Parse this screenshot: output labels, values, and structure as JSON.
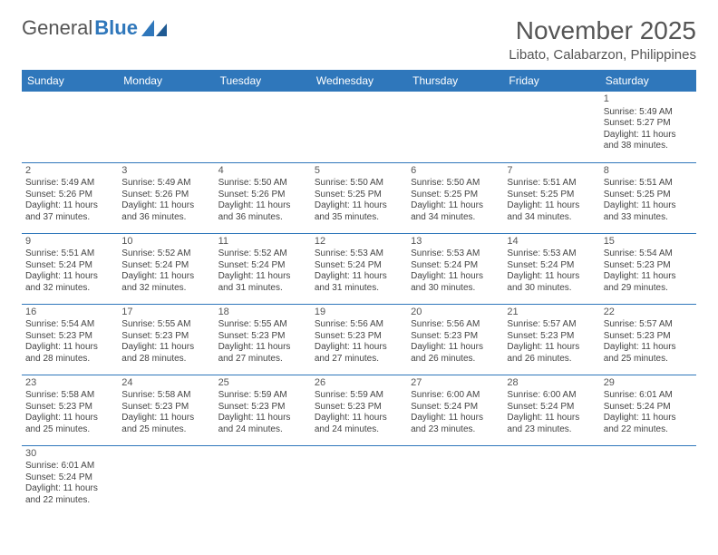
{
  "brand": {
    "part1": "General",
    "part2": "Blue"
  },
  "title": "November 2025",
  "location": "Libato, Calabarzon, Philippines",
  "colors": {
    "header_bg": "#2f77bb",
    "header_text": "#ffffff",
    "border": "#2f77bb",
    "text": "#444444",
    "title_text": "#555555"
  },
  "typography": {
    "title_fontsize": 28,
    "location_fontsize": 15,
    "dayheader_fontsize": 12,
    "cell_fontsize": 10
  },
  "day_headers": [
    "Sunday",
    "Monday",
    "Tuesday",
    "Wednesday",
    "Thursday",
    "Friday",
    "Saturday"
  ],
  "weeks": [
    [
      null,
      null,
      null,
      null,
      null,
      null,
      {
        "n": "1",
        "sr": "Sunrise: 5:49 AM",
        "ss": "Sunset: 5:27 PM",
        "d1": "Daylight: 11 hours",
        "d2": "and 38 minutes."
      }
    ],
    [
      {
        "n": "2",
        "sr": "Sunrise: 5:49 AM",
        "ss": "Sunset: 5:26 PM",
        "d1": "Daylight: 11 hours",
        "d2": "and 37 minutes."
      },
      {
        "n": "3",
        "sr": "Sunrise: 5:49 AM",
        "ss": "Sunset: 5:26 PM",
        "d1": "Daylight: 11 hours",
        "d2": "and 36 minutes."
      },
      {
        "n": "4",
        "sr": "Sunrise: 5:50 AM",
        "ss": "Sunset: 5:26 PM",
        "d1": "Daylight: 11 hours",
        "d2": "and 36 minutes."
      },
      {
        "n": "5",
        "sr": "Sunrise: 5:50 AM",
        "ss": "Sunset: 5:25 PM",
        "d1": "Daylight: 11 hours",
        "d2": "and 35 minutes."
      },
      {
        "n": "6",
        "sr": "Sunrise: 5:50 AM",
        "ss": "Sunset: 5:25 PM",
        "d1": "Daylight: 11 hours",
        "d2": "and 34 minutes."
      },
      {
        "n": "7",
        "sr": "Sunrise: 5:51 AM",
        "ss": "Sunset: 5:25 PM",
        "d1": "Daylight: 11 hours",
        "d2": "and 34 minutes."
      },
      {
        "n": "8",
        "sr": "Sunrise: 5:51 AM",
        "ss": "Sunset: 5:25 PM",
        "d1": "Daylight: 11 hours",
        "d2": "and 33 minutes."
      }
    ],
    [
      {
        "n": "9",
        "sr": "Sunrise: 5:51 AM",
        "ss": "Sunset: 5:24 PM",
        "d1": "Daylight: 11 hours",
        "d2": "and 32 minutes."
      },
      {
        "n": "10",
        "sr": "Sunrise: 5:52 AM",
        "ss": "Sunset: 5:24 PM",
        "d1": "Daylight: 11 hours",
        "d2": "and 32 minutes."
      },
      {
        "n": "11",
        "sr": "Sunrise: 5:52 AM",
        "ss": "Sunset: 5:24 PM",
        "d1": "Daylight: 11 hours",
        "d2": "and 31 minutes."
      },
      {
        "n": "12",
        "sr": "Sunrise: 5:53 AM",
        "ss": "Sunset: 5:24 PM",
        "d1": "Daylight: 11 hours",
        "d2": "and 31 minutes."
      },
      {
        "n": "13",
        "sr": "Sunrise: 5:53 AM",
        "ss": "Sunset: 5:24 PM",
        "d1": "Daylight: 11 hours",
        "d2": "and 30 minutes."
      },
      {
        "n": "14",
        "sr": "Sunrise: 5:53 AM",
        "ss": "Sunset: 5:24 PM",
        "d1": "Daylight: 11 hours",
        "d2": "and 30 minutes."
      },
      {
        "n": "15",
        "sr": "Sunrise: 5:54 AM",
        "ss": "Sunset: 5:23 PM",
        "d1": "Daylight: 11 hours",
        "d2": "and 29 minutes."
      }
    ],
    [
      {
        "n": "16",
        "sr": "Sunrise: 5:54 AM",
        "ss": "Sunset: 5:23 PM",
        "d1": "Daylight: 11 hours",
        "d2": "and 28 minutes."
      },
      {
        "n": "17",
        "sr": "Sunrise: 5:55 AM",
        "ss": "Sunset: 5:23 PM",
        "d1": "Daylight: 11 hours",
        "d2": "and 28 minutes."
      },
      {
        "n": "18",
        "sr": "Sunrise: 5:55 AM",
        "ss": "Sunset: 5:23 PM",
        "d1": "Daylight: 11 hours",
        "d2": "and 27 minutes."
      },
      {
        "n": "19",
        "sr": "Sunrise: 5:56 AM",
        "ss": "Sunset: 5:23 PM",
        "d1": "Daylight: 11 hours",
        "d2": "and 27 minutes."
      },
      {
        "n": "20",
        "sr": "Sunrise: 5:56 AM",
        "ss": "Sunset: 5:23 PM",
        "d1": "Daylight: 11 hours",
        "d2": "and 26 minutes."
      },
      {
        "n": "21",
        "sr": "Sunrise: 5:57 AM",
        "ss": "Sunset: 5:23 PM",
        "d1": "Daylight: 11 hours",
        "d2": "and 26 minutes."
      },
      {
        "n": "22",
        "sr": "Sunrise: 5:57 AM",
        "ss": "Sunset: 5:23 PM",
        "d1": "Daylight: 11 hours",
        "d2": "and 25 minutes."
      }
    ],
    [
      {
        "n": "23",
        "sr": "Sunrise: 5:58 AM",
        "ss": "Sunset: 5:23 PM",
        "d1": "Daylight: 11 hours",
        "d2": "and 25 minutes."
      },
      {
        "n": "24",
        "sr": "Sunrise: 5:58 AM",
        "ss": "Sunset: 5:23 PM",
        "d1": "Daylight: 11 hours",
        "d2": "and 25 minutes."
      },
      {
        "n": "25",
        "sr": "Sunrise: 5:59 AM",
        "ss": "Sunset: 5:23 PM",
        "d1": "Daylight: 11 hours",
        "d2": "and 24 minutes."
      },
      {
        "n": "26",
        "sr": "Sunrise: 5:59 AM",
        "ss": "Sunset: 5:23 PM",
        "d1": "Daylight: 11 hours",
        "d2": "and 24 minutes."
      },
      {
        "n": "27",
        "sr": "Sunrise: 6:00 AM",
        "ss": "Sunset: 5:24 PM",
        "d1": "Daylight: 11 hours",
        "d2": "and 23 minutes."
      },
      {
        "n": "28",
        "sr": "Sunrise: 6:00 AM",
        "ss": "Sunset: 5:24 PM",
        "d1": "Daylight: 11 hours",
        "d2": "and 23 minutes."
      },
      {
        "n": "29",
        "sr": "Sunrise: 6:01 AM",
        "ss": "Sunset: 5:24 PM",
        "d1": "Daylight: 11 hours",
        "d2": "and 22 minutes."
      }
    ],
    [
      {
        "n": "30",
        "sr": "Sunrise: 6:01 AM",
        "ss": "Sunset: 5:24 PM",
        "d1": "Daylight: 11 hours",
        "d2": "and 22 minutes."
      },
      null,
      null,
      null,
      null,
      null,
      null
    ]
  ]
}
